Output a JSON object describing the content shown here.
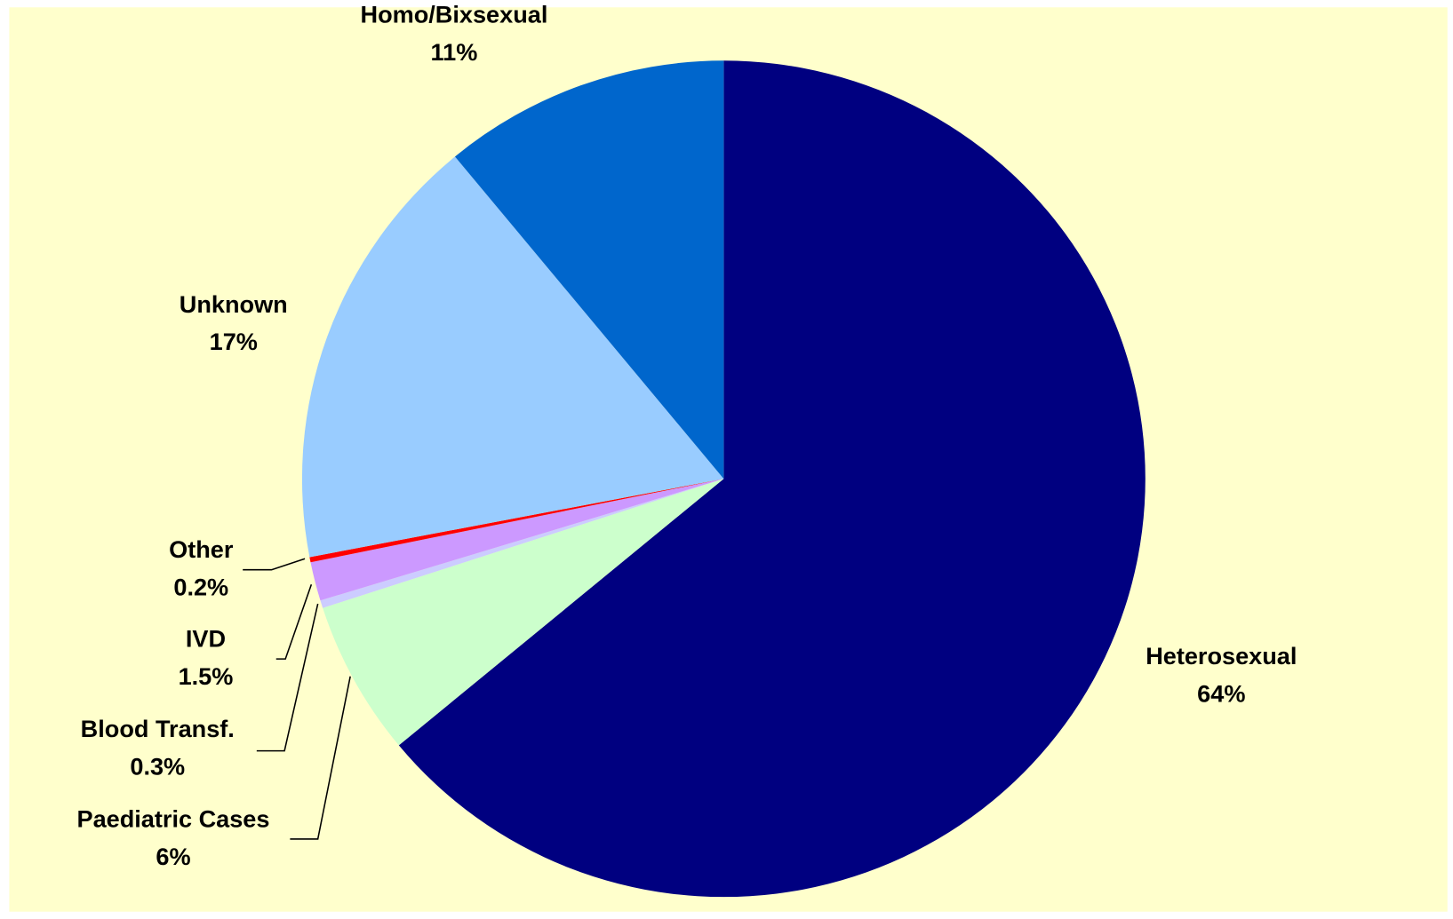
{
  "chart_data": {
    "type": "pie",
    "categories": [
      "Heterosexual",
      "Paediatric Cases",
      "Blood Transf.",
      "IVD",
      "Other",
      "Unknown",
      "Homo/Bixsexual"
    ],
    "values": [
      64,
      6,
      0.3,
      1.5,
      0.2,
      17,
      11
    ],
    "value_labels": [
      "64%",
      "6%",
      "0.3%",
      "1.5%",
      "0.2%",
      "17%",
      "11%"
    ],
    "colors": [
      "#000080",
      "#ccffcc",
      "#ccccff",
      "#cc99ff",
      "#ff0000",
      "#99ccff",
      "#0066cc"
    ]
  }
}
